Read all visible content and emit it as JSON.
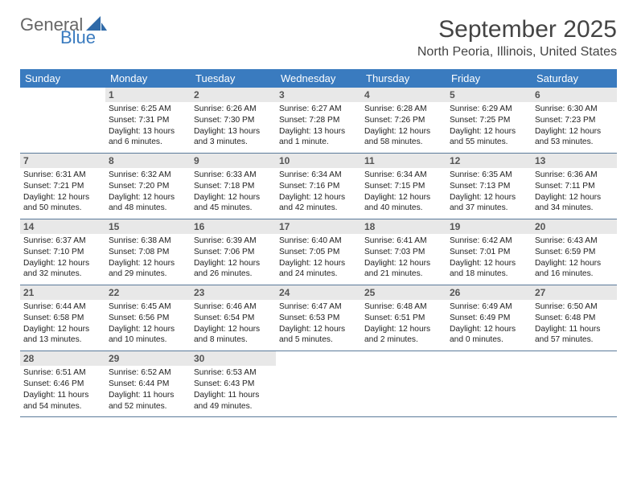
{
  "logo": {
    "text1": "General",
    "text2": "Blue"
  },
  "header": {
    "title": "September 2025",
    "location": "North Peoria, Illinois, United States"
  },
  "colors": {
    "header_bg": "#3a7bbf",
    "daynum_bg": "#e8e8e8",
    "row_border": "#5a7a9a",
    "text": "#222222"
  },
  "days_of_week": [
    "Sunday",
    "Monday",
    "Tuesday",
    "Wednesday",
    "Thursday",
    "Friday",
    "Saturday"
  ],
  "weeks": [
    [
      null,
      {
        "n": "1",
        "sunrise": "6:25 AM",
        "sunset": "7:31 PM",
        "day_h": "13",
        "day_m": "6"
      },
      {
        "n": "2",
        "sunrise": "6:26 AM",
        "sunset": "7:30 PM",
        "day_h": "13",
        "day_m": "3"
      },
      {
        "n": "3",
        "sunrise": "6:27 AM",
        "sunset": "7:28 PM",
        "day_h": "13",
        "day_m": "1 minute"
      },
      {
        "n": "4",
        "sunrise": "6:28 AM",
        "sunset": "7:26 PM",
        "day_h": "12",
        "day_m": "58"
      },
      {
        "n": "5",
        "sunrise": "6:29 AM",
        "sunset": "7:25 PM",
        "day_h": "12",
        "day_m": "55"
      },
      {
        "n": "6",
        "sunrise": "6:30 AM",
        "sunset": "7:23 PM",
        "day_h": "12",
        "day_m": "53"
      }
    ],
    [
      {
        "n": "7",
        "sunrise": "6:31 AM",
        "sunset": "7:21 PM",
        "day_h": "12",
        "day_m": "50"
      },
      {
        "n": "8",
        "sunrise": "6:32 AM",
        "sunset": "7:20 PM",
        "day_h": "12",
        "day_m": "48"
      },
      {
        "n": "9",
        "sunrise": "6:33 AM",
        "sunset": "7:18 PM",
        "day_h": "12",
        "day_m": "45"
      },
      {
        "n": "10",
        "sunrise": "6:34 AM",
        "sunset": "7:16 PM",
        "day_h": "12",
        "day_m": "42"
      },
      {
        "n": "11",
        "sunrise": "6:34 AM",
        "sunset": "7:15 PM",
        "day_h": "12",
        "day_m": "40"
      },
      {
        "n": "12",
        "sunrise": "6:35 AM",
        "sunset": "7:13 PM",
        "day_h": "12",
        "day_m": "37"
      },
      {
        "n": "13",
        "sunrise": "6:36 AM",
        "sunset": "7:11 PM",
        "day_h": "12",
        "day_m": "34"
      }
    ],
    [
      {
        "n": "14",
        "sunrise": "6:37 AM",
        "sunset": "7:10 PM",
        "day_h": "12",
        "day_m": "32"
      },
      {
        "n": "15",
        "sunrise": "6:38 AM",
        "sunset": "7:08 PM",
        "day_h": "12",
        "day_m": "29"
      },
      {
        "n": "16",
        "sunrise": "6:39 AM",
        "sunset": "7:06 PM",
        "day_h": "12",
        "day_m": "26"
      },
      {
        "n": "17",
        "sunrise": "6:40 AM",
        "sunset": "7:05 PM",
        "day_h": "12",
        "day_m": "24"
      },
      {
        "n": "18",
        "sunrise": "6:41 AM",
        "sunset": "7:03 PM",
        "day_h": "12",
        "day_m": "21"
      },
      {
        "n": "19",
        "sunrise": "6:42 AM",
        "sunset": "7:01 PM",
        "day_h": "12",
        "day_m": "18"
      },
      {
        "n": "20",
        "sunrise": "6:43 AM",
        "sunset": "6:59 PM",
        "day_h": "12",
        "day_m": "16"
      }
    ],
    [
      {
        "n": "21",
        "sunrise": "6:44 AM",
        "sunset": "6:58 PM",
        "day_h": "12",
        "day_m": "13"
      },
      {
        "n": "22",
        "sunrise": "6:45 AM",
        "sunset": "6:56 PM",
        "day_h": "12",
        "day_m": "10"
      },
      {
        "n": "23",
        "sunrise": "6:46 AM",
        "sunset": "6:54 PM",
        "day_h": "12",
        "day_m": "8"
      },
      {
        "n": "24",
        "sunrise": "6:47 AM",
        "sunset": "6:53 PM",
        "day_h": "12",
        "day_m": "5"
      },
      {
        "n": "25",
        "sunrise": "6:48 AM",
        "sunset": "6:51 PM",
        "day_h": "12",
        "day_m": "2"
      },
      {
        "n": "26",
        "sunrise": "6:49 AM",
        "sunset": "6:49 PM",
        "day_h": "12",
        "day_m": "0"
      },
      {
        "n": "27",
        "sunrise": "6:50 AM",
        "sunset": "6:48 PM",
        "day_h": "11",
        "day_m": "57"
      }
    ],
    [
      {
        "n": "28",
        "sunrise": "6:51 AM",
        "sunset": "6:46 PM",
        "day_h": "11",
        "day_m": "54"
      },
      {
        "n": "29",
        "sunrise": "6:52 AM",
        "sunset": "6:44 PM",
        "day_h": "11",
        "day_m": "52"
      },
      {
        "n": "30",
        "sunrise": "6:53 AM",
        "sunset": "6:43 PM",
        "day_h": "11",
        "day_m": "49"
      },
      null,
      null,
      null,
      null
    ]
  ],
  "labels": {
    "sunrise": "Sunrise:",
    "sunset": "Sunset:",
    "daylight": "Daylight:",
    "hours": "hours",
    "and": "and",
    "minutes": "minutes."
  }
}
